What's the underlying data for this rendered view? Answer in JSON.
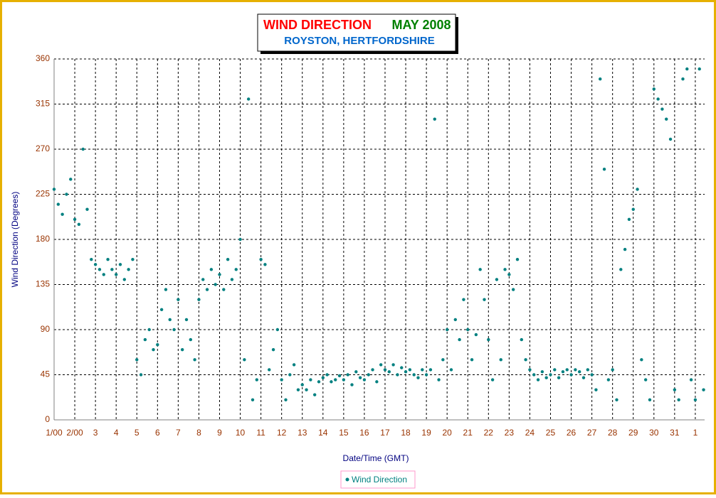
{
  "chart_data": {
    "type": "scatter",
    "title": "WIND DIRECTION",
    "title_date": "MAY 2008",
    "subtitle": "ROYSTON, HERTFORDSHIRE",
    "x_label": "Date/Time (GMT)",
    "y_label": "Wind Direction (Degrees)",
    "xlim": [
      1,
      32.45
    ],
    "ylim": [
      0,
      360
    ],
    "xticks": [
      {
        "value": 1,
        "label": "1/00"
      },
      {
        "value": 2,
        "label": "2/00"
      },
      3,
      4,
      5,
      6,
      7,
      8,
      9,
      10,
      11,
      12,
      13,
      14,
      15,
      16,
      17,
      18,
      19,
      20,
      21,
      22,
      23,
      24,
      25,
      26,
      27,
      28,
      29,
      30,
      31,
      {
        "value": 32,
        "label": "1"
      }
    ],
    "yticks": [
      0,
      45,
      90,
      135,
      180,
      225,
      270,
      315,
      360
    ],
    "grid": true,
    "legend": "bottom",
    "series": [
      {
        "name": "Wind Direction",
        "color": "#008080",
        "x": [
          1,
          1.2,
          1.4,
          1.6,
          1.8,
          2,
          2.2,
          2.4,
          2.6,
          2.8,
          3,
          3.2,
          3.4,
          3.6,
          3.8,
          4,
          4.2,
          4.4,
          4.6,
          4.8,
          5,
          5.2,
          5.4,
          5.6,
          5.8,
          6,
          6.2,
          6.4,
          6.6,
          6.8,
          7,
          7.2,
          7.4,
          7.6,
          7.8,
          8,
          8.2,
          8.4,
          8.6,
          8.8,
          9,
          9.2,
          9.4,
          9.6,
          9.8,
          10,
          10.2,
          10.4,
          10.6,
          10.8,
          11,
          11.2,
          11.4,
          11.6,
          11.8,
          12,
          12.2,
          12.4,
          12.6,
          12.8,
          13,
          13.2,
          13.4,
          13.6,
          13.8,
          14,
          14.2,
          14.4,
          14.6,
          14.8,
          15,
          15.2,
          15.4,
          15.6,
          15.8,
          16,
          16.2,
          16.4,
          16.6,
          16.8,
          17,
          17.2,
          17.4,
          17.6,
          17.8,
          18,
          18.2,
          18.4,
          18.6,
          18.8,
          19,
          19.2,
          19.4,
          19.6,
          19.8,
          20,
          20.2,
          20.4,
          20.6,
          20.8,
          21,
          21.2,
          21.4,
          21.6,
          21.8,
          22,
          22.2,
          22.4,
          22.6,
          22.8,
          23,
          23.2,
          23.4,
          23.6,
          23.8,
          24,
          24.2,
          24.4,
          24.6,
          24.8,
          25,
          25.2,
          25.4,
          25.6,
          25.8,
          26,
          26.2,
          26.4,
          26.6,
          26.8,
          27,
          27.2,
          27.4,
          27.6,
          27.8,
          28,
          28.2,
          28.4,
          28.6,
          28.8,
          29,
          29.2,
          29.4,
          29.6,
          29.8,
          30,
          30.2,
          30.4,
          30.6,
          30.8,
          31,
          31.2,
          31.4,
          31.6,
          31.8,
          32,
          32.2,
          32.4
        ],
        "values": [
          230,
          215,
          205,
          225,
          240,
          200,
          195,
          270,
          210,
          160,
          155,
          150,
          145,
          160,
          150,
          145,
          155,
          140,
          150,
          160,
          60,
          45,
          80,
          90,
          70,
          75,
          110,
          130,
          100,
          90,
          120,
          70,
          100,
          80,
          60,
          120,
          140,
          130,
          150,
          135,
          145,
          130,
          160,
          140,
          150,
          180,
          60,
          320,
          20,
          40,
          160,
          155,
          50,
          70,
          90,
          40,
          20,
          45,
          55,
          30,
          35,
          30,
          40,
          25,
          38,
          42,
          45,
          38,
          40,
          44,
          40,
          45,
          35,
          48,
          42,
          40,
          45,
          50,
          38,
          55,
          50,
          48,
          55,
          45,
          52,
          48,
          50,
          45,
          42,
          50,
          45,
          50,
          300,
          40,
          60,
          90,
          50,
          100,
          80,
          120,
          90,
          60,
          85,
          150,
          120,
          80,
          40,
          140,
          60,
          150,
          145,
          130,
          160,
          80,
          60,
          50,
          45,
          40,
          48,
          42,
          45,
          50,
          42,
          48,
          50,
          45,
          50,
          48,
          42,
          50,
          45,
          30,
          340,
          250,
          40,
          50,
          20,
          150,
          170,
          200,
          210,
          230,
          60,
          40,
          20,
          330,
          320,
          310,
          300,
          280,
          30,
          20,
          340,
          350,
          40,
          20,
          350,
          30
        ]
      }
    ]
  }
}
